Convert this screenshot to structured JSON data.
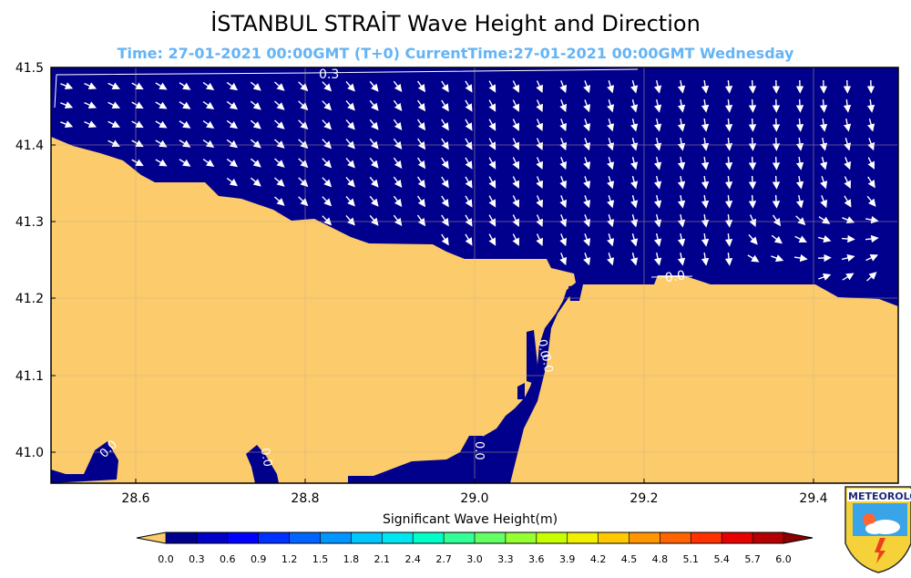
{
  "title": "İSTANBUL STRAİT Wave Height and Direction",
  "subtitle": "Time: 27-01-2021 00:00GMT (T+0)  CurrentTime:27-01-2021 00:00GMT Wednesday",
  "map": {
    "lon_range": [
      28.5,
      29.5
    ],
    "lat_range": [
      40.96,
      41.5
    ],
    "xticks": [
      "28.6",
      "28.8",
      "29.0",
      "29.2",
      "29.4"
    ],
    "yticks": [
      "41.5",
      "41.4",
      "41.3",
      "41.2",
      "41.1",
      "41.0"
    ],
    "sea_color": "#00008c",
    "land_color": "#fccb6b",
    "contour_labels": [
      "0.3",
      "0.0",
      "0.0",
      "0.0",
      "0.0",
      "0.0",
      "0.0"
    ],
    "wave_direction": "mostly southeastward in the west, southward in the east, turning northward near the eastern coast"
  },
  "colorbar": {
    "label": "Significant Wave Height(m)",
    "ticks": [
      "0.0",
      "0.3",
      "0.6",
      "0.9",
      "1.2",
      "1.5",
      "1.8",
      "2.1",
      "2.4",
      "2.7",
      "3.0",
      "3.3",
      "3.6",
      "3.9",
      "4.2",
      "4.5",
      "4.8",
      "5.1",
      "5.4",
      "5.7",
      "6.0"
    ],
    "colors": [
      "#00008c",
      "#0000c8",
      "#0000ff",
      "#0032ff",
      "#0064ff",
      "#0096ff",
      "#00c8ff",
      "#00e6f0",
      "#00ffc8",
      "#32ff96",
      "#64ff64",
      "#96ff32",
      "#c8ff00",
      "#f0f000",
      "#ffc800",
      "#ff9600",
      "#ff6400",
      "#ff3200",
      "#e60000",
      "#b40000"
    ],
    "under_color": "#fccb6b",
    "over_color": "#8c0000"
  },
  "logo": {
    "text": "METEOROLOJ",
    "icon": "meteorology-shield-icon"
  }
}
